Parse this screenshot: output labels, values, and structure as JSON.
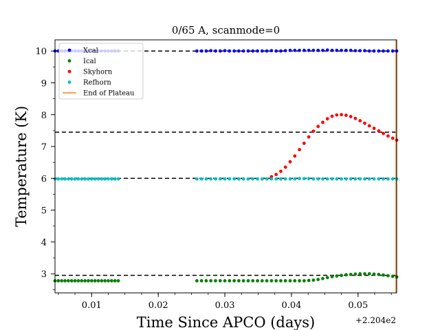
{
  "chart_data": {
    "type": "scatter",
    "title": "0/65 A, scanmode=0",
    "xlabel": "Time Since APCO (days)",
    "ylabel": "Temperature (K)",
    "x_offset_label": "+2.204e2",
    "xlim": [
      0.0045,
      0.0558
    ],
    "ylim": [
      2.4,
      10.35
    ],
    "x_ticks": [
      0.01,
      0.02,
      0.03,
      0.04,
      0.05
    ],
    "x_tick_labels": [
      "0.01",
      "0.02",
      "0.03",
      "0.04",
      "0.05"
    ],
    "y_ticks": [
      3,
      4,
      5,
      6,
      7,
      8,
      9,
      10
    ],
    "y_tick_labels": [
      "3",
      "4",
      "5",
      "6",
      "7",
      "8",
      "9",
      "10"
    ],
    "hlines": [
      10.0,
      7.45,
      6.0,
      2.95
    ],
    "end_of_plateau_x": 0.0557,
    "legend_position": "upper-left",
    "legend": [
      {
        "label": "Xcal",
        "color": "#0000ff",
        "kind": "marker"
      },
      {
        "label": "Ical",
        "color": "#008000",
        "kind": "marker"
      },
      {
        "label": "Skyhorn",
        "color": "#ff0000",
        "kind": "marker"
      },
      {
        "label": "Refhorn",
        "color": "#00bfbf",
        "kind": "marker"
      },
      {
        "label": "End of Plateau",
        "color": "#ff7f0e",
        "kind": "line"
      }
    ],
    "series": [
      {
        "name": "Xcal",
        "color": "#0000ff",
        "x": [
          0.0045,
          0.005,
          0.0055,
          0.006,
          0.0065,
          0.007,
          0.0075,
          0.008,
          0.0085,
          0.009,
          0.0095,
          0.01,
          0.0105,
          0.011,
          0.0115,
          0.012,
          0.0125,
          0.013,
          0.0135,
          0.014,
          0.0258,
          0.0265,
          0.0272,
          0.0279,
          0.0286,
          0.0293,
          0.03,
          0.0307,
          0.0314,
          0.0321,
          0.0328,
          0.0335,
          0.0342,
          0.0349,
          0.0356,
          0.0363,
          0.037,
          0.0377,
          0.0384,
          0.0391,
          0.0398,
          0.0405,
          0.0412,
          0.0419,
          0.0426,
          0.0433,
          0.044,
          0.0447,
          0.0454,
          0.0461,
          0.0468,
          0.0475,
          0.0482,
          0.0489,
          0.0496,
          0.0503,
          0.051,
          0.0517,
          0.0524,
          0.0531,
          0.0538,
          0.0545,
          0.0552,
          0.0558
        ],
        "y": [
          10.0,
          10.0,
          10.0,
          10.0,
          10.0,
          10.0,
          10.0,
          10.0,
          10.0,
          10.0,
          10.0,
          10.0,
          10.0,
          10.0,
          10.0,
          10.0,
          10.0,
          10.0,
          10.0,
          10.0,
          10.0,
          10.0,
          10.0,
          10.01,
          10.0,
          10.0,
          10.01,
          10.0,
          10.0,
          10.0,
          10.0,
          10.0,
          10.0,
          10.0,
          10.0,
          10.0,
          10.01,
          10.0,
          10.0,
          10.01,
          10.02,
          10.02,
          10.02,
          10.02,
          10.02,
          10.02,
          10.02,
          10.02,
          10.03,
          10.02,
          10.02,
          10.02,
          10.02,
          10.02,
          10.01,
          10.01,
          10.01,
          10.0,
          10.0,
          10.0,
          10.0,
          10.0,
          10.0,
          10.0
        ]
      },
      {
        "name": "Ical",
        "color": "#008000",
        "x": [
          0.0045,
          0.005,
          0.0055,
          0.006,
          0.0065,
          0.007,
          0.0075,
          0.008,
          0.0085,
          0.009,
          0.0095,
          0.01,
          0.0105,
          0.011,
          0.0115,
          0.012,
          0.0125,
          0.013,
          0.0135,
          0.014,
          0.0258,
          0.0265,
          0.0272,
          0.0279,
          0.0286,
          0.0293,
          0.03,
          0.0307,
          0.0314,
          0.0321,
          0.0328,
          0.0335,
          0.0342,
          0.0349,
          0.0356,
          0.0363,
          0.037,
          0.0377,
          0.0384,
          0.0391,
          0.0398,
          0.0405,
          0.0412,
          0.0419,
          0.0426,
          0.0433,
          0.044,
          0.0447,
          0.0454,
          0.0461,
          0.0468,
          0.0475,
          0.0482,
          0.0489,
          0.0496,
          0.0503,
          0.051,
          0.0517,
          0.0524,
          0.0531,
          0.0538,
          0.0545,
          0.0552,
          0.0558
        ],
        "y": [
          2.78,
          2.78,
          2.78,
          2.78,
          2.78,
          2.78,
          2.78,
          2.78,
          2.78,
          2.78,
          2.78,
          2.78,
          2.78,
          2.78,
          2.78,
          2.78,
          2.78,
          2.78,
          2.78,
          2.78,
          2.78,
          2.78,
          2.78,
          2.78,
          2.78,
          2.78,
          2.78,
          2.78,
          2.78,
          2.78,
          2.78,
          2.78,
          2.78,
          2.78,
          2.78,
          2.78,
          2.78,
          2.78,
          2.78,
          2.78,
          2.78,
          2.78,
          2.78,
          2.78,
          2.79,
          2.8,
          2.82,
          2.85,
          2.88,
          2.91,
          2.93,
          2.95,
          2.97,
          2.98,
          2.99,
          3.0,
          3.0,
          3.0,
          2.99,
          2.98,
          2.96,
          2.94,
          2.92,
          2.9
        ]
      },
      {
        "name": "Skyhorn",
        "color": "#ff0000",
        "x": [
          0.037,
          0.0377,
          0.0384,
          0.0391,
          0.0398,
          0.0405,
          0.0412,
          0.0419,
          0.0426,
          0.0433,
          0.044,
          0.0447,
          0.0454,
          0.0461,
          0.0468,
          0.0475,
          0.0482,
          0.0489,
          0.0496,
          0.0503,
          0.051,
          0.0517,
          0.0524,
          0.0531,
          0.0538,
          0.0545,
          0.0552,
          0.0558
        ],
        "y": [
          6.05,
          6.12,
          6.22,
          6.35,
          6.52,
          6.7,
          6.9,
          7.1,
          7.3,
          7.48,
          7.63,
          7.76,
          7.87,
          7.95,
          7.99,
          8.0,
          7.98,
          7.94,
          7.88,
          7.81,
          7.73,
          7.65,
          7.57,
          7.49,
          7.41,
          7.33,
          7.26,
          7.2
        ]
      },
      {
        "name": "Refhorn",
        "color": "#00bfbf",
        "x": [
          0.0045,
          0.005,
          0.0055,
          0.006,
          0.0065,
          0.007,
          0.0075,
          0.008,
          0.0085,
          0.009,
          0.0095,
          0.01,
          0.0105,
          0.011,
          0.0115,
          0.012,
          0.0125,
          0.013,
          0.0135,
          0.014,
          0.0258,
          0.0265,
          0.0272,
          0.0279,
          0.0286,
          0.0293,
          0.03,
          0.0307,
          0.0314,
          0.0321,
          0.0328,
          0.0335,
          0.0342,
          0.0349,
          0.0356,
          0.0363,
          0.037,
          0.0377,
          0.0384,
          0.0391,
          0.0398,
          0.0405,
          0.0412,
          0.0419,
          0.0426,
          0.0433,
          0.044,
          0.0447,
          0.0454,
          0.0461,
          0.0468,
          0.0475,
          0.0482,
          0.0489,
          0.0496,
          0.0503,
          0.051,
          0.0517,
          0.0524,
          0.0531,
          0.0538,
          0.0545,
          0.0552,
          0.0558
        ],
        "y": [
          5.98,
          5.98,
          5.98,
          5.98,
          5.98,
          5.98,
          5.98,
          5.98,
          5.98,
          5.98,
          5.98,
          5.98,
          5.98,
          5.98,
          5.98,
          5.98,
          5.98,
          5.98,
          5.98,
          5.98,
          5.98,
          5.98,
          5.98,
          5.98,
          5.98,
          5.98,
          5.98,
          5.98,
          5.98,
          5.98,
          5.98,
          5.98,
          5.98,
          5.98,
          5.98,
          5.98,
          5.98,
          5.98,
          5.98,
          5.98,
          5.98,
          5.98,
          5.99,
          5.99,
          5.99,
          5.98,
          5.98,
          5.98,
          5.98,
          5.98,
          5.98,
          5.98,
          5.98,
          5.98,
          5.98,
          5.98,
          5.98,
          5.98,
          5.98,
          5.98,
          5.98,
          5.98,
          5.98,
          5.98
        ]
      }
    ]
  }
}
